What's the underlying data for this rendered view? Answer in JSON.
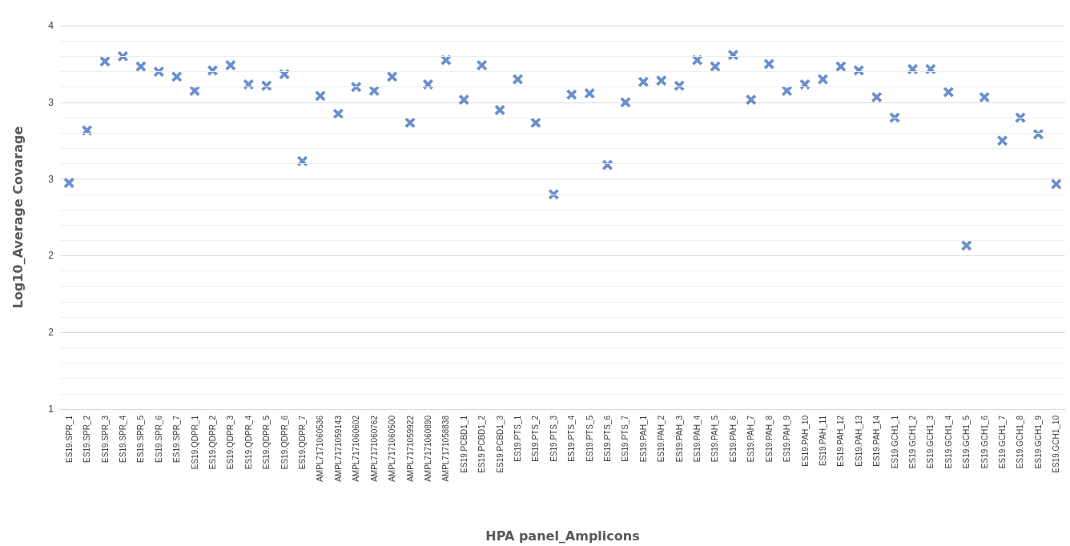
{
  "chart_data": {
    "type": "scatter",
    "xlabel": "HPA panel_Amplicons",
    "ylabel": "Log10_Average Covarage",
    "categories": [
      "ES19.SPR_1",
      "ES19.SPR_2",
      "ES19.SPR_3",
      "ES19.SPR_4",
      "ES19.SPR_5",
      "ES19.SPR_6",
      "ES19.SPR_7",
      "ES19.QDPR_1",
      "ES19.QDPR_2",
      "ES19.QDPR_3",
      "ES19.QDPR_4",
      "ES19.QDPR_5",
      "ES19.QDPR_6",
      "ES19.QDPR_7",
      "AMPL7171060536",
      "AMPL7171059143",
      "AMPL7171060602",
      "AMPL7171060762",
      "AMPL7171060500",
      "AMPL7171059922",
      "AMPL7171060890",
      "AMPL7171058838",
      "ES19.PCBD1_1",
      "ES19.PCBD1_2",
      "ES19.PCBD1_3",
      "ES19.PTS_1",
      "ES19.PTS_2",
      "ES19.PTS_3",
      "ES19.PTS_4",
      "ES19.PTS_5",
      "ES19.PTS_6",
      "ES19.PTS_7",
      "ES19.PAH_1",
      "ES19.PAH_2",
      "ES19.PAH_3",
      "ES19.PAH_4",
      "ES19.PAH_5",
      "ES19.PAH_6",
      "ES19.PAH_7",
      "ES19.PAH_8",
      "ES19.PAH_9",
      "ES19.PAH_10",
      "ES19.PAH_11",
      "ES19.PAH_12",
      "ES19.PAH_13",
      "ES19.PAH_14",
      "ES19.GCH1_1",
      "ES19.GCH1_2",
      "ES19.GCH1_3",
      "ES19.GCH1_4",
      "ES19.GCH1_5",
      "ES19.GCH1_6",
      "ES19.GCH1_7",
      "ES19.GCH1_8",
      "ES19.GCH1_9",
      "ES19.GCH1_10"
    ],
    "values": [
      2.77,
      3.18,
      3.72,
      3.76,
      3.68,
      3.64,
      3.6,
      3.49,
      3.65,
      3.69,
      3.54,
      3.53,
      3.62,
      2.94,
      3.45,
      3.31,
      3.52,
      3.49,
      3.6,
      3.24,
      3.54,
      3.73,
      3.42,
      3.69,
      3.34,
      3.58,
      3.24,
      2.68,
      3.46,
      3.47,
      2.91,
      3.4,
      3.56,
      3.57,
      3.53,
      3.73,
      3.68,
      3.77,
      3.42,
      3.7,
      3.49,
      3.54,
      3.58,
      3.68,
      3.65,
      3.44,
      3.28,
      3.66,
      3.66,
      3.48,
      2.28,
      3.44,
      3.1,
      3.28,
      3.15,
      2.76
    ],
    "color": "#4472c4",
    "marker": "cross",
    "ylim": [
      1,
      4
    ],
    "yticks": [
      1,
      {
        "value": 1.6,
        "label": "2"
      },
      {
        "value": 2.2,
        "label": "2"
      },
      {
        "value": 2.8,
        "label": "3"
      },
      {
        "value": 3.4,
        "label": "3"
      },
      4
    ],
    "grid": "y"
  }
}
